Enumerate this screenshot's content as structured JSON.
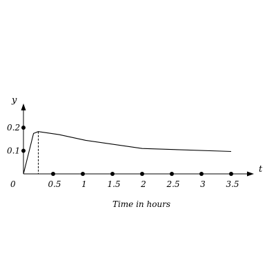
{
  "chart_data": {
    "type": "line",
    "title": "",
    "xlabel": "Time in hours",
    "ylabel": "",
    "x_axis_var": "t",
    "y_axis_var": "y",
    "origin_label": "0",
    "xlim": [
      0,
      3.75
    ],
    "ylim": [
      0,
      0.25
    ],
    "x_ticks": [
      {
        "value": 0.5,
        "label": "0.5"
      },
      {
        "value": 1,
        "label": "1"
      },
      {
        "value": 1.5,
        "label": "1.5"
      },
      {
        "value": 2,
        "label": "2"
      },
      {
        "value": 2.5,
        "label": "2.5"
      },
      {
        "value": 3,
        "label": "3"
      },
      {
        "value": 3.5,
        "label": "3.5"
      }
    ],
    "y_ticks": [
      {
        "value": 0.1,
        "label": "0.1"
      },
      {
        "value": 0.2,
        "label": "0.2"
      }
    ],
    "grid": false,
    "series": [
      {
        "x": [
          0,
          0.17,
          0.25,
          0.6,
          1.05,
          2.0,
          3.5
        ],
        "y": [
          0,
          0.175,
          0.183,
          0.17,
          0.145,
          0.11,
          0.097
        ]
      }
    ],
    "annotations": [
      {
        "type": "dashed-drop-line",
        "x": 0.25,
        "y": 0.183
      }
    ]
  }
}
